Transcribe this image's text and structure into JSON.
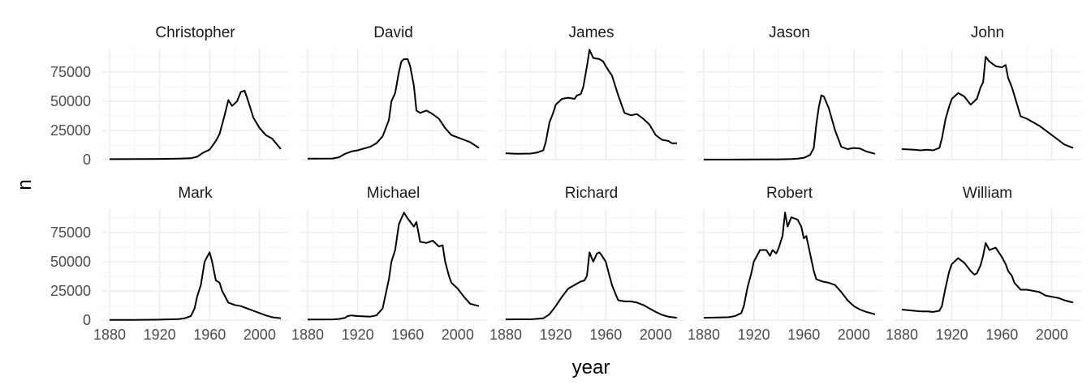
{
  "chart_data": {
    "type": "line",
    "xlabel": "year",
    "ylabel": "n",
    "xlim": [
      1880,
      2017
    ],
    "ylim": [
      0,
      95000
    ],
    "x_ticks": [
      1880,
      1920,
      1960,
      2000
    ],
    "y_ticks": [
      0,
      25000,
      50000,
      75000
    ],
    "grid": true,
    "layout": "facet grid, 2 rows x 5 columns",
    "line_color": "#000000",
    "panels": [
      {
        "name": "Christopher",
        "x": [
          1880,
          1900,
          1920,
          1935,
          1945,
          1950,
          1955,
          1960,
          1965,
          1968,
          1970,
          1972,
          1975,
          1978,
          1980,
          1982,
          1985,
          1988,
          1990,
          1995,
          2000,
          2005,
          2010,
          2017
        ],
        "y": [
          400,
          500,
          600,
          800,
          1200,
          2500,
          6000,
          8500,
          16000,
          22000,
          30000,
          38000,
          51000,
          46000,
          48000,
          50000,
          58000,
          59000,
          53000,
          36000,
          27000,
          21000,
          18000,
          9000
        ]
      },
      {
        "name": "David",
        "x": [
          1880,
          1900,
          1905,
          1910,
          1915,
          1920,
          1930,
          1935,
          1940,
          1945,
          1947,
          1950,
          1953,
          1955,
          1957,
          1960,
          1962,
          1965,
          1967,
          1970,
          1975,
          1980,
          1985,
          1990,
          1995,
          2000,
          2005,
          2010,
          2017
        ],
        "y": [
          900,
          1000,
          2000,
          5000,
          7000,
          8000,
          11000,
          14000,
          20000,
          34000,
          50000,
          57000,
          75000,
          84000,
          86000,
          86000,
          80000,
          63000,
          42000,
          40000,
          42000,
          39000,
          35000,
          27000,
          21000,
          19000,
          17000,
          15000,
          10000
        ]
      },
      {
        "name": "James",
        "x": [
          1880,
          1890,
          1900,
          1905,
          1910,
          1912,
          1915,
          1918,
          1920,
          1925,
          1930,
          1935,
          1937,
          1940,
          1942,
          1945,
          1947,
          1950,
          1955,
          1958,
          1960,
          1963,
          1965,
          1970,
          1975,
          1980,
          1985,
          1990,
          1995,
          2000,
          2005,
          2010,
          2013,
          2017
        ],
        "y": [
          5500,
          5000,
          5200,
          6000,
          8000,
          15000,
          32000,
          40000,
          47000,
          52000,
          53000,
          52000,
          55000,
          56000,
          62000,
          80000,
          94000,
          87000,
          86000,
          84000,
          80000,
          75000,
          72000,
          55000,
          40000,
          38000,
          39000,
          35000,
          30000,
          21000,
          17000,
          16000,
          14000,
          14000
        ]
      },
      {
        "name": "Jason",
        "x": [
          1880,
          1900,
          1920,
          1940,
          1950,
          1955,
          1960,
          1965,
          1968,
          1970,
          1972,
          1974,
          1976,
          1980,
          1985,
          1990,
          1995,
          2000,
          2005,
          2010,
          2017
        ],
        "y": [
          100,
          100,
          150,
          250,
          500,
          800,
          1500,
          4000,
          10000,
          30000,
          45000,
          55000,
          54000,
          44000,
          25000,
          11000,
          9000,
          10000,
          9500,
          7000,
          5000
        ]
      },
      {
        "name": "John",
        "x": [
          1880,
          1890,
          1895,
          1900,
          1905,
          1910,
          1912,
          1915,
          1918,
          1920,
          1925,
          1930,
          1935,
          1940,
          1943,
          1945,
          1947,
          1950,
          1955,
          1960,
          1963,
          1965,
          1968,
          1970,
          1975,
          1980,
          1985,
          1990,
          1995,
          2000,
          2005,
          2010,
          2017
        ],
        "y": [
          9000,
          8500,
          8000,
          8500,
          8000,
          10000,
          18000,
          35000,
          46000,
          52000,
          57000,
          54000,
          47000,
          52000,
          62000,
          66000,
          88000,
          84000,
          80000,
          79000,
          81000,
          70000,
          62000,
          55000,
          37000,
          35000,
          32000,
          29000,
          25000,
          21000,
          17000,
          13000,
          10000
        ]
      },
      {
        "name": "Mark",
        "x": [
          1880,
          1900,
          1920,
          1935,
          1940,
          1945,
          1948,
          1950,
          1953,
          1956,
          1958,
          1960,
          1962,
          1965,
          1968,
          1970,
          1975,
          1980,
          1985,
          1990,
          1995,
          2000,
          2005,
          2010,
          2017
        ],
        "y": [
          200,
          200,
          400,
          800,
          1500,
          3500,
          10000,
          20000,
          30000,
          50000,
          54000,
          58000,
          50000,
          34000,
          32000,
          25000,
          15000,
          13000,
          12000,
          10000,
          8000,
          6000,
          4000,
          2500,
          1500
        ]
      },
      {
        "name": "Michael",
        "x": [
          1880,
          1900,
          1905,
          1910,
          1912,
          1915,
          1920,
          1930,
          1935,
          1940,
          1943,
          1945,
          1947,
          1950,
          1953,
          1955,
          1957,
          1960,
          1965,
          1967,
          1970,
          1975,
          1980,
          1985,
          1988,
          1990,
          1993,
          1995,
          2000,
          2005,
          2010,
          2017
        ],
        "y": [
          500,
          600,
          1000,
          2000,
          3500,
          4000,
          3500,
          3000,
          4000,
          10000,
          25000,
          35000,
          50000,
          60000,
          82000,
          87000,
          92000,
          87000,
          80000,
          84000,
          67000,
          66000,
          68000,
          63000,
          64000,
          50000,
          38000,
          32000,
          27000,
          20000,
          14000,
          12000
        ]
      },
      {
        "name": "Richard",
        "x": [
          1880,
          1900,
          1910,
          1915,
          1920,
          1925,
          1930,
          1935,
          1940,
          1943,
          1945,
          1947,
          1950,
          1953,
          1955,
          1957,
          1960,
          1963,
          1965,
          1968,
          1970,
          1975,
          1980,
          1985,
          1990,
          1995,
          2000,
          2005,
          2010,
          2017
        ],
        "y": [
          600,
          700,
          1500,
          5000,
          12000,
          20000,
          27000,
          30000,
          33000,
          34000,
          38000,
          58000,
          50000,
          57000,
          58000,
          55000,
          50000,
          38000,
          30000,
          22000,
          17000,
          16000,
          16000,
          15000,
          13000,
          10000,
          7000,
          4500,
          3000,
          2000
        ]
      },
      {
        "name": "Robert",
        "x": [
          1880,
          1900,
          1905,
          1910,
          1912,
          1915,
          1918,
          1920,
          1925,
          1930,
          1933,
          1935,
          1938,
          1940,
          1943,
          1945,
          1947,
          1950,
          1955,
          1958,
          1960,
          1962,
          1965,
          1968,
          1970,
          1975,
          1980,
          1985,
          1990,
          1995,
          2000,
          2005,
          2010,
          2017
        ],
        "y": [
          2000,
          2500,
          3500,
          6000,
          12000,
          28000,
          40000,
          50000,
          60000,
          60000,
          55000,
          60000,
          57000,
          62000,
          72000,
          92000,
          80000,
          88000,
          86000,
          80000,
          70000,
          72000,
          57000,
          42000,
          35000,
          33000,
          32000,
          30000,
          24000,
          17000,
          12000,
          9000,
          7000,
          5000
        ]
      },
      {
        "name": "William",
        "x": [
          1880,
          1890,
          1895,
          1900,
          1905,
          1910,
          1912,
          1915,
          1918,
          1920,
          1925,
          1930,
          1935,
          1938,
          1940,
          1943,
          1945,
          1947,
          1950,
          1955,
          1960,
          1963,
          1965,
          1968,
          1970,
          1975,
          1980,
          1985,
          1990,
          1995,
          2000,
          2005,
          2010,
          2017
        ],
        "y": [
          9000,
          8000,
          7500,
          7500,
          7000,
          8000,
          12000,
          28000,
          42000,
          48000,
          53000,
          49000,
          42000,
          39000,
          40000,
          47000,
          55000,
          66000,
          60000,
          62000,
          54000,
          48000,
          42000,
          38000,
          32000,
          26000,
          26000,
          25000,
          24000,
          21000,
          20000,
          19000,
          17000,
          15000
        ]
      }
    ]
  }
}
